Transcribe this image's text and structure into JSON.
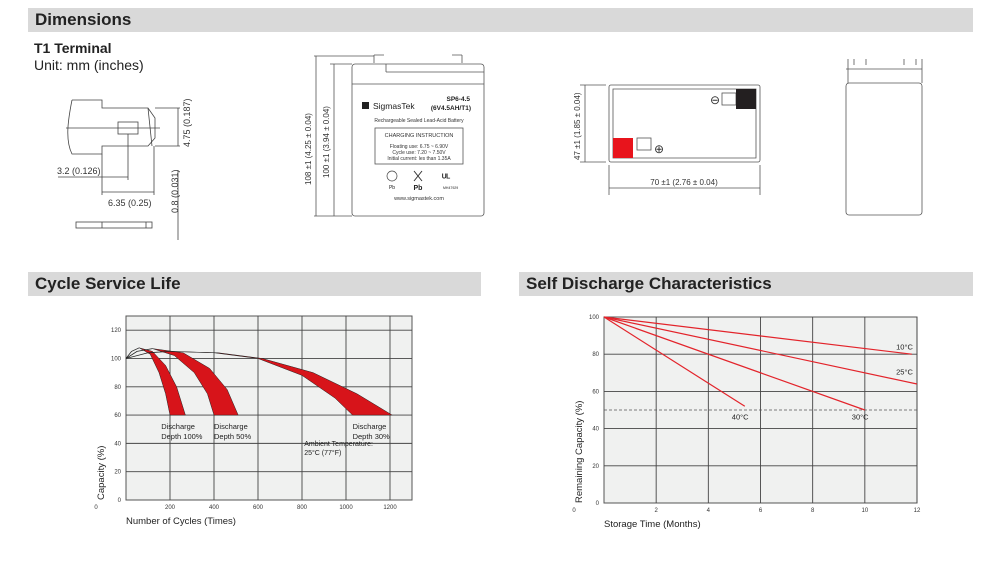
{
  "sections": {
    "dimensions": "Dimensions",
    "cycle_life": "Cycle Service Life",
    "self_discharge": "Self Discharge Characteristics"
  },
  "terminal": {
    "title": "T1 Terminal",
    "unit": "Unit: mm (inches)",
    "dim_height": "4.75 (0.187)",
    "dim_hole": "3.2 (0.126)",
    "dim_width": "6.35 (0.25)",
    "dim_thickness": "0.8 (0.031)"
  },
  "front_view": {
    "dim_total_height": "108 ±1 (4.25 ± 0.04)",
    "dim_case_height": "100 ±1 (3.94 ± 0.04)",
    "brand": "SigmasTek",
    "model": "SP6-4.5",
    "model_detail": "(6V4.5AH/T1)",
    "description": "Rechargeable Sealed Lead-Acid Battery",
    "charging_title": "CHARGING INSTRUCTION",
    "charging_lines": [
      "Floating use: 6.75 ~ 6.90V",
      "Cycle use: 7.20 ~ 7.50V",
      "Initial current: les than 1.35A"
    ],
    "recycle_label": "Pb",
    "bin_label": "Pb",
    "ul_label": "MH47929",
    "website": "www.sigmastek.com"
  },
  "top_view": {
    "dim_depth": "47 ±1 (1.85 ± 0.04)",
    "dim_length": "70 ±1 (2.76 ± 0.04)",
    "negative_symbol": "⊖",
    "positive_symbol": "⊕",
    "colors": {
      "positive": "#e8141c",
      "negative": "#231f20"
    }
  },
  "chart_data": [
    {
      "type": "area",
      "xlabel": "Number of Cycles (Times)",
      "ylabel": "Capacity (%)",
      "xlim": [
        0,
        1300
      ],
      "ylim": [
        0,
        130
      ],
      "xticks": [
        0,
        200,
        400,
        600,
        800,
        1000,
        1200
      ],
      "yticks": [
        0,
        20,
        40,
        60,
        80,
        100,
        120
      ],
      "grid": true,
      "color": "#d7141a",
      "series": [
        {
          "label_lines": [
            "Discharge",
            "Depth 100%"
          ],
          "rise": [
            [
              0,
              100
            ],
            [
              25,
              105
            ],
            [
              60,
              107.5
            ]
          ],
          "inner": [
            [
              60,
              107.5
            ],
            [
              110,
              103
            ],
            [
              150,
              90
            ],
            [
              180,
              75
            ],
            [
              200,
              60
            ]
          ],
          "outer": [
            [
              60,
              107.5
            ],
            [
              120,
              105
            ],
            [
              180,
              95
            ],
            [
              230,
              80
            ],
            [
              270,
              60
            ]
          ]
        },
        {
          "label_lines": [
            "Discharge",
            "Depth 50%"
          ],
          "rise": [
            [
              0,
              100
            ],
            [
              50,
              105
            ],
            [
              120,
              107
            ]
          ],
          "inner": [
            [
              120,
              107
            ],
            [
              220,
              102
            ],
            [
              310,
              90
            ],
            [
              370,
              75
            ],
            [
              400,
              60
            ]
          ],
          "outer": [
            [
              120,
              107
            ],
            [
              260,
              104
            ],
            [
              380,
              93
            ],
            [
              460,
              78
            ],
            [
              510,
              60
            ]
          ]
        },
        {
          "label_lines": [
            "Discharge",
            "Depth 30%"
          ],
          "rise": [
            [
              0,
              100
            ],
            [
              100,
              104
            ],
            [
              200,
              105
            ]
          ],
          "inner": [
            [
              200,
              105
            ],
            [
              400,
              104
            ],
            [
              600,
              100
            ],
            [
              800,
              88
            ],
            [
              950,
              72
            ],
            [
              1030,
              60
            ]
          ],
          "outer": [
            [
              200,
              105
            ],
            [
              420,
              104
            ],
            [
              620,
              100
            ],
            [
              850,
              90
            ],
            [
              1050,
              75
            ],
            [
              1210,
              60
            ]
          ]
        }
      ],
      "annotation": [
        "Ambient Temperature:",
        "25°C (77°F)"
      ]
    },
    {
      "type": "line",
      "xlabel": "Storage Time (Months)",
      "ylabel": "Remaining Capacity (%)",
      "xlim": [
        0,
        12
      ],
      "ylim": [
        0,
        100
      ],
      "xticks": [
        0,
        2,
        4,
        6,
        8,
        10,
        12
      ],
      "yticks": [
        0,
        20,
        40,
        60,
        80,
        100
      ],
      "grid": true,
      "reference_line": 50,
      "color": "#e3242b",
      "series": [
        {
          "name": "10°C",
          "points": [
            [
              0,
              100
            ],
            [
              11.8,
              80
            ]
          ]
        },
        {
          "name": "25°C",
          "points": [
            [
              0,
              100
            ],
            [
              12,
              64
            ]
          ]
        },
        {
          "name": "30°C",
          "points": [
            [
              0,
              100
            ],
            [
              10,
              50
            ]
          ]
        },
        {
          "name": "40°C",
          "points": [
            [
              0,
              100
            ],
            [
              5.4,
              52
            ]
          ]
        }
      ]
    }
  ]
}
